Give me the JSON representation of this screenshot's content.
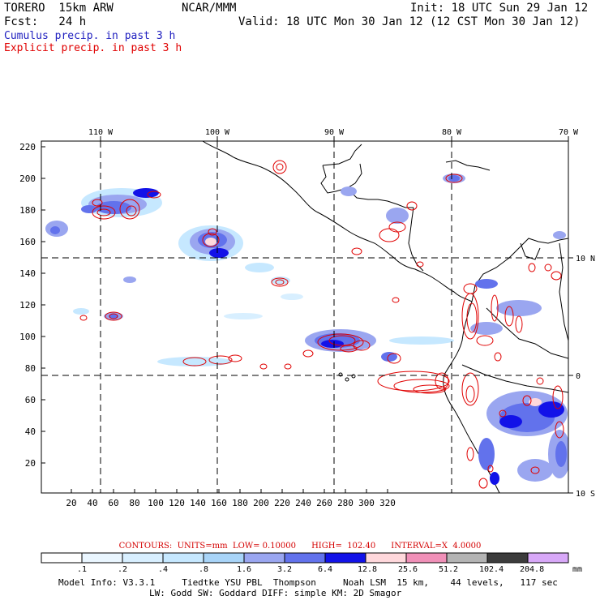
{
  "header": {
    "model": "TORERO  15km ARW",
    "org": "NCAR/MMM",
    "init": "Init: 18 UTC Sun 29 Jan 12",
    "fcst": "Fcst:   24 h",
    "valid": "Valid: 18 UTC Mon 30 Jan 12 (12 CST Mon 30 Jan 12)",
    "cumulus_label": "Cumulus precip. in past 3 h",
    "explicit_label": "Explicit precip. in past 3 h",
    "cumulus_color": "#2020c0",
    "explicit_color": "#e00000"
  },
  "map": {
    "top_labels": [
      "110 W",
      "100 W",
      "90 W",
      "80 W",
      "70 W"
    ],
    "right_labels": [
      "10 N",
      "0",
      "10 S"
    ],
    "y_ticks": [
      "220",
      "200",
      "180",
      "160",
      "140",
      "120",
      "100",
      "80",
      "60",
      "40",
      "20"
    ],
    "x_ticks": [
      "20",
      "40",
      "60",
      "80",
      "100",
      "120",
      "140",
      "160",
      "180",
      "200",
      "220",
      "240",
      "260",
      "280",
      "300",
      "320"
    ]
  },
  "contours": {
    "label": "CONTOURS:  UNITS=mm  LOW= 0.10000      HIGH=  102.40      INTERVAL=X  4.0000"
  },
  "colorbar": {
    "labels": [
      ".1",
      ".2",
      ".4",
      ".8",
      "1.6",
      "3.2",
      "6.4",
      "12.8",
      "25.6",
      "51.2",
      "102.4",
      "204.8"
    ],
    "unit": "mm",
    "colors": [
      "#ffffff",
      "#eaf6ff",
      "#d8efff",
      "#c6e8ff",
      "#a8d4f8",
      "#9aa6f0",
      "#6272ec",
      "#1212e8",
      "#ffd8dc",
      "#f090b8",
      "#b4b4b4",
      "#3c3c3c",
      "#d8a8f8"
    ]
  },
  "footer": {
    "line1": "Model Info: V3.3.1     Tiedtke YSU PBL  Thompson     Noah LSM  15 km,    44 levels,   117 sec",
    "line2": "LW: Godd SW: Goddard DIFF: simple KM: 2D Smagor"
  }
}
